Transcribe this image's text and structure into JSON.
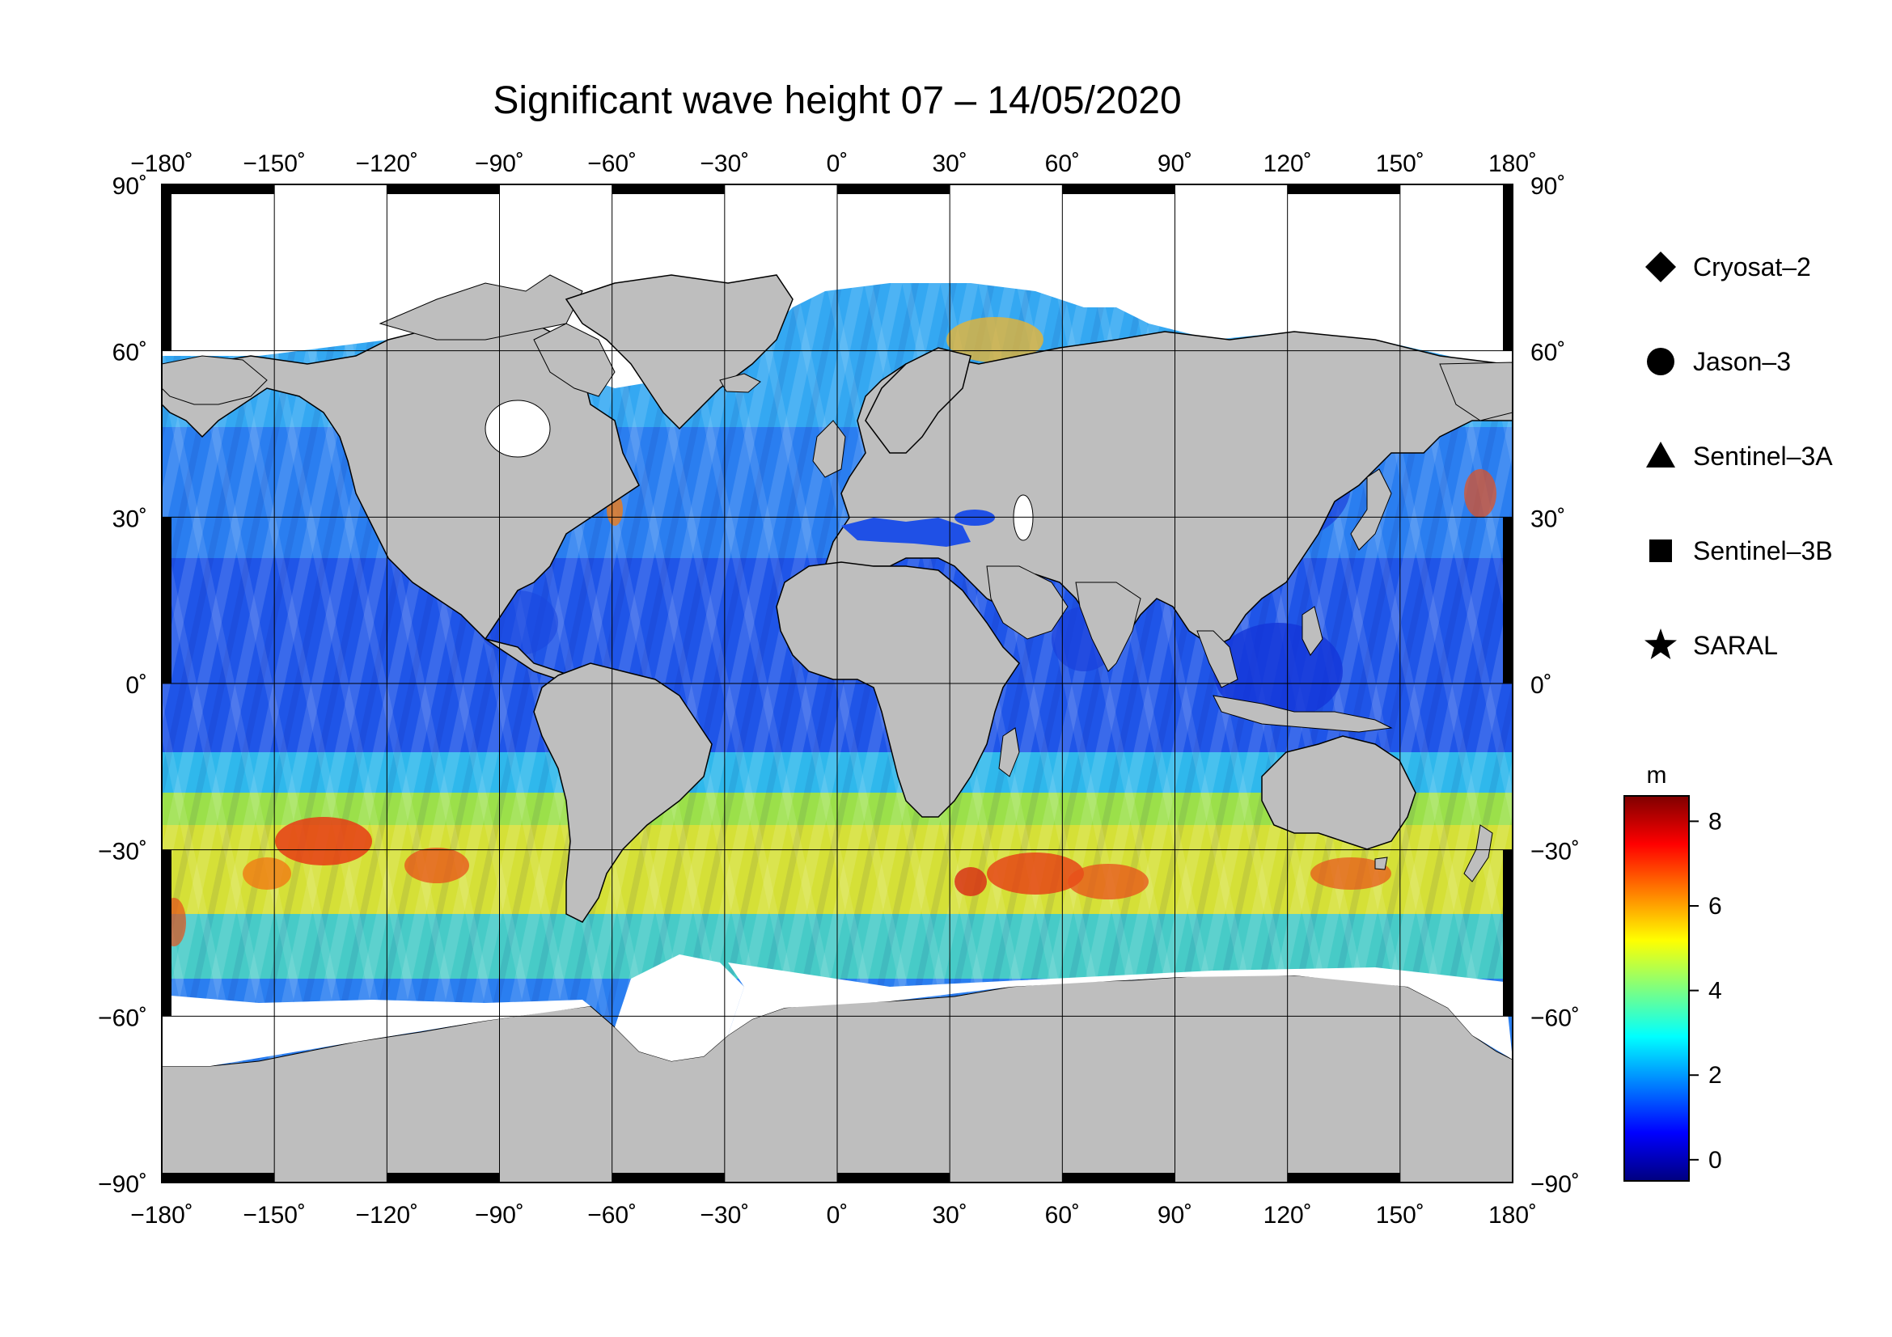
{
  "title": "Significant wave height 07 – 14/05/2020",
  "lon_ticks": [
    "−180˚",
    "−150˚",
    "−120˚",
    "−90˚",
    "−60˚",
    "−30˚",
    "0˚",
    "30˚",
    "60˚",
    "90˚",
    "120˚",
    "150˚",
    "180˚"
  ],
  "lat_ticks": [
    "90˚",
    "60˚",
    "30˚",
    "0˚",
    "−30˚",
    "−60˚",
    "−90˚"
  ],
  "legend": [
    {
      "label": "Cryosat–2",
      "icon": "diamond-icon"
    },
    {
      "label": "Jason–3",
      "icon": "circle-icon"
    },
    {
      "label": "Sentinel–3A",
      "icon": "triangle-icon"
    },
    {
      "label": "Sentinel–3B",
      "icon": "square-icon"
    },
    {
      "label": "SARAL",
      "icon": "star-icon"
    }
  ],
  "colorbar": {
    "unit": "m",
    "ticks": [
      "0",
      "2",
      "4",
      "6",
      "8"
    ],
    "range": [
      -0.5,
      8.6
    ],
    "colors": [
      "#00007f",
      "#0000ff",
      "#007fff",
      "#00ffff",
      "#7fff7f",
      "#ffff00",
      "#ff7f00",
      "#ff0000",
      "#7f0000"
    ]
  },
  "colors": {
    "land": "#bebebe",
    "ice": "#ffffff",
    "ocean_low": "#1e46e6",
    "ocean_mid": "#28aaf0",
    "ocean_high": "#f0e628",
    "ocean_peak": "#e63c14"
  }
}
